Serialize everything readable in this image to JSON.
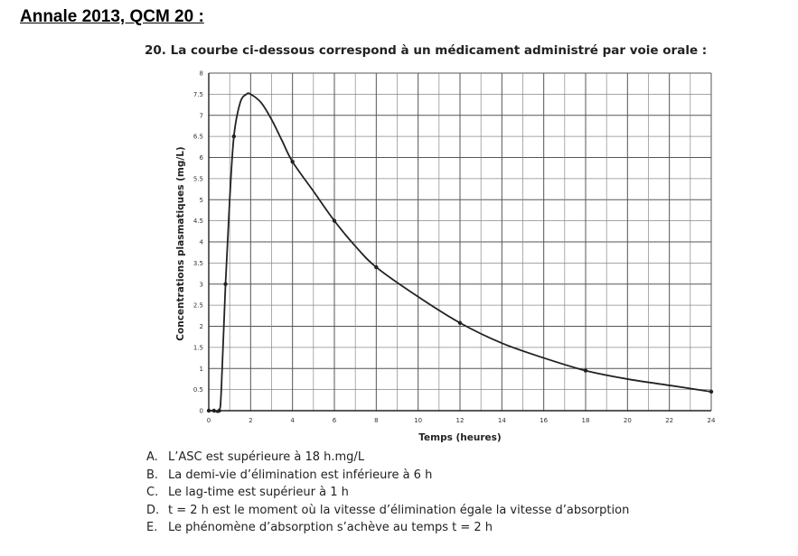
{
  "heading": "Annale 2013, QCM 20 :",
  "question": "20. La courbe ci-dessous correspond à un médicament administré par voie orale :",
  "options": [
    {
      "letter": "A.",
      "text": "L’ASC est supérieure à 18 h.mg/L"
    },
    {
      "letter": "B.",
      "text": "La demi-vie d’élimination est inférieure à 6 h"
    },
    {
      "letter": "C.",
      "text": "Le lag-time est supérieur à 1 h"
    },
    {
      "letter": "D.",
      "text": "t = 2 h est  le moment où la vitesse d’élimination égale la vitesse d’absorption"
    },
    {
      "letter": "E.",
      "text": "Le phénomène d’absorption s’achève au temps t = 2 h"
    }
  ],
  "chart_data": {
    "type": "line",
    "title": "",
    "xlabel": "Temps (heures)",
    "ylabel": "Concentrations plasmatiques (mg/L)",
    "xlim": [
      0,
      24
    ],
    "ylim": [
      0,
      8
    ],
    "grid": true,
    "xticks": [
      "0",
      "2",
      "4",
      "6",
      "8",
      "10",
      "12",
      "14",
      "16",
      "18",
      "20",
      "22",
      "24"
    ],
    "yticks": [
      "0",
      "0.5",
      "1",
      "1.5",
      "2",
      "2.5",
      "3",
      "3.5",
      "4",
      "4.5",
      "5",
      "5.5",
      "6",
      "6.5",
      "7",
      "7.5",
      "8"
    ],
    "series": [
      {
        "x": [
          0,
          0.25,
          0.5,
          0.6,
          0.8,
          1,
          1.2,
          1.5,
          1.8,
          2,
          2.5,
          3,
          3.5,
          4,
          5,
          6,
          7,
          8,
          10,
          12,
          14,
          16,
          18,
          20,
          22,
          24
        ],
        "y": [
          0,
          0,
          0,
          0.5,
          3,
          5,
          6.5,
          7.3,
          7.5,
          7.5,
          7.3,
          6.9,
          6.4,
          5.9,
          5.2,
          4.5,
          3.9,
          3.4,
          2.7,
          2.08,
          1.6,
          1.25,
          0.95,
          0.75,
          0.6,
          0.45
        ]
      }
    ],
    "markers": {
      "x": [
        0,
        0.25,
        0.5,
        0.8,
        1.2,
        4,
        6,
        8,
        12,
        18,
        24
      ],
      "y": [
        0,
        0,
        0,
        3,
        6.5,
        5.9,
        4.5,
        3.4,
        2.08,
        0.95,
        0.45
      ]
    }
  }
}
